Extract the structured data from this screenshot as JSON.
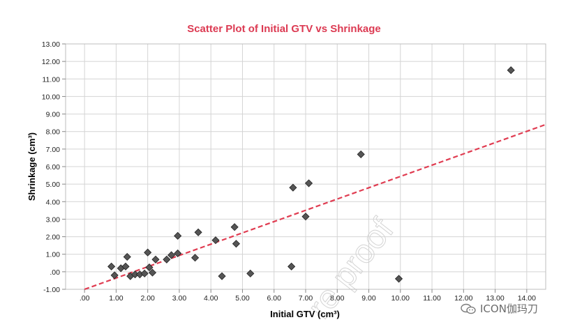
{
  "chart_data": {
    "type": "scatter",
    "title": "Scatter Plot of Initial GTV vs Shrinkage",
    "xlabel": "Initial GTV (cm³)",
    "ylabel": "Shrinkage (cm³)",
    "xlim": [
      -0.6,
      14.6
    ],
    "ylim": [
      -1.0,
      13.0
    ],
    "x_ticks": [
      0,
      1,
      2,
      3,
      4,
      5,
      6,
      7,
      8,
      9,
      10,
      11,
      12,
      13,
      14
    ],
    "x_tick_labels": [
      ".00",
      "1.00",
      "2.00",
      "3.00",
      "4.00",
      "5.00",
      "6.00",
      "7.00",
      "8.00",
      "9.00",
      "10.00",
      "11.00",
      "12.00",
      "13.00",
      "14.00"
    ],
    "y_ticks": [
      -1,
      0,
      1,
      2,
      3,
      4,
      5,
      6,
      7,
      8,
      9,
      10,
      11,
      12,
      13
    ],
    "y_tick_labels": [
      "-1.00",
      ".00",
      "1.00",
      "2.00",
      "3.00",
      "4.00",
      "5.00",
      "6.00",
      "7.00",
      "8.00",
      "9.00",
      "10.00",
      "11.00",
      "12.00",
      "13.00"
    ],
    "grid": true,
    "series": [
      {
        "marker": "diamond",
        "color": "#555555",
        "points": [
          [
            0.85,
            0.3
          ],
          [
            0.95,
            -0.2
          ],
          [
            1.15,
            0.2
          ],
          [
            1.3,
            0.3
          ],
          [
            1.35,
            0.85
          ],
          [
            1.45,
            -0.25
          ],
          [
            1.6,
            -0.15
          ],
          [
            1.75,
            -0.15
          ],
          [
            1.9,
            -0.1
          ],
          [
            2.0,
            1.1
          ],
          [
            2.05,
            0.25
          ],
          [
            2.15,
            -0.05
          ],
          [
            2.25,
            0.7
          ],
          [
            2.6,
            0.7
          ],
          [
            2.75,
            0.95
          ],
          [
            2.95,
            2.05
          ],
          [
            2.95,
            1.05
          ],
          [
            3.5,
            0.8
          ],
          [
            3.6,
            2.25
          ],
          [
            4.15,
            1.8
          ],
          [
            4.35,
            -0.25
          ],
          [
            4.75,
            2.55
          ],
          [
            4.8,
            1.6
          ],
          [
            5.25,
            -0.1
          ],
          [
            6.55,
            0.3
          ],
          [
            6.6,
            4.8
          ],
          [
            7.0,
            3.15
          ],
          [
            7.1,
            5.05
          ],
          [
            8.75,
            6.7
          ],
          [
            9.95,
            -0.4
          ],
          [
            13.5,
            11.5
          ]
        ]
      }
    ],
    "trendline": {
      "style": "dashed",
      "color": "#e03c51",
      "x": [
        0.0,
        14.6
      ],
      "y": [
        -1.0,
        8.4
      ]
    }
  },
  "title_color": "#dc3a52",
  "watermark": "re proof",
  "brand": {
    "icon": "wechat-icon",
    "label": "ICON伽玛刀"
  }
}
